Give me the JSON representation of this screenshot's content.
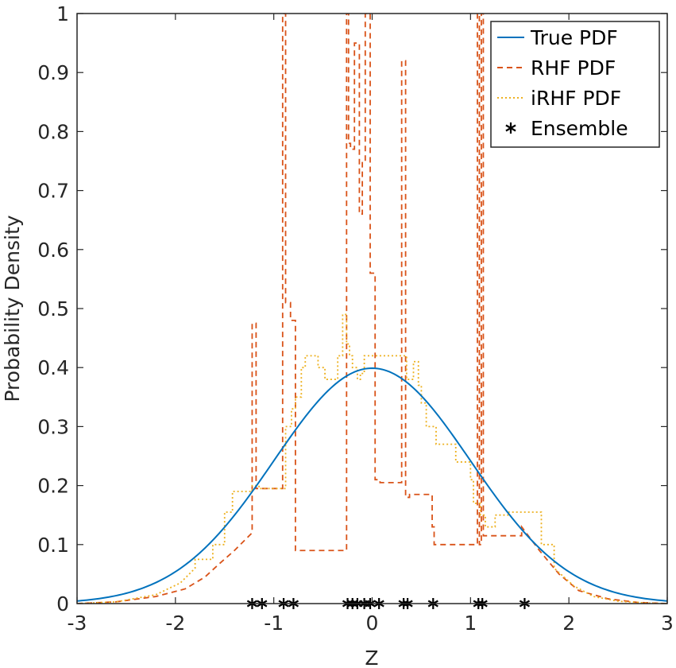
{
  "chart_data": {
    "type": "line",
    "title": "",
    "xlabel": "Z",
    "ylabel": "Probability Density",
    "xlim": [
      -3,
      3
    ],
    "ylim": [
      0,
      1
    ],
    "xticks": [
      "-3",
      "-2",
      "-1",
      "0",
      "1",
      "2",
      "3"
    ],
    "yticks": [
      "0",
      "0.1",
      "0.2",
      "0.3",
      "0.4",
      "0.5",
      "0.6",
      "0.7",
      "0.8",
      "0.9",
      "1"
    ],
    "grid": false,
    "legend_position": "top-right",
    "series": [
      {
        "name": "True PDF",
        "style": "solid",
        "color": "#0072bd",
        "kind": "normal_pdf",
        "mean": 0,
        "std": 1
      },
      {
        "name": "RHF PDF",
        "style": "dashed",
        "color": "#d95319",
        "x": [
          -3.0,
          -2.6,
          -2.2,
          -1.9,
          -1.7,
          -1.55,
          -1.4,
          -1.22,
          -1.22,
          -1.18,
          -1.18,
          -1.12,
          -1.12,
          -0.91,
          -0.91,
          -0.88,
          -0.88,
          -0.83,
          -0.83,
          -0.78,
          -0.78,
          -0.26,
          -0.26,
          -0.24,
          -0.24,
          -0.22,
          -0.22,
          -0.18,
          -0.18,
          -0.13,
          -0.13,
          -0.1,
          -0.1,
          -0.07,
          -0.07,
          -0.02,
          -0.02,
          0.0,
          0.0,
          0.03,
          0.03,
          0.08,
          0.08,
          0.3,
          0.3,
          0.34,
          0.34,
          0.38,
          0.38,
          0.61,
          0.61,
          0.63,
          0.63,
          1.07,
          1.07,
          1.09,
          1.09,
          1.11,
          1.11,
          1.13,
          1.13,
          1.52,
          1.52,
          1.7,
          1.9,
          2.1,
          2.4,
          2.7,
          3.0
        ],
        "y": [
          0.0,
          0.003,
          0.012,
          0.025,
          0.045,
          0.068,
          0.09,
          0.12,
          0.475,
          0.475,
          0.195,
          0.195,
          0.195,
          0.195,
          1.0,
          1.0,
          0.51,
          0.51,
          0.48,
          0.48,
          0.09,
          0.09,
          1.0,
          1.0,
          0.78,
          0.78,
          0.77,
          0.77,
          0.95,
          0.95,
          0.66,
          0.66,
          0.75,
          0.75,
          1.0,
          1.0,
          0.56,
          0.56,
          0.56,
          0.56,
          0.21,
          0.21,
          0.205,
          0.205,
          0.92,
          0.92,
          0.18,
          0.18,
          0.185,
          0.185,
          0.13,
          0.13,
          0.1,
          0.1,
          1.0,
          1.0,
          0.1,
          0.1,
          1.0,
          1.0,
          0.115,
          0.115,
          0.13,
          0.09,
          0.05,
          0.022,
          0.008,
          0.002,
          0.0
        ]
      },
      {
        "name": "iRHF PDF",
        "style": "dotted",
        "color": "#edb120",
        "x": [
          -3.0,
          -2.6,
          -2.2,
          -1.95,
          -1.8,
          -1.8,
          -1.62,
          -1.62,
          -1.5,
          -1.5,
          -1.42,
          -1.42,
          -1.22,
          -1.22,
          -1.15,
          -1.15,
          -1.0,
          -0.88,
          -0.88,
          -0.82,
          -0.82,
          -0.78,
          -0.78,
          -0.72,
          -0.72,
          -0.68,
          -0.68,
          -0.55,
          -0.55,
          -0.48,
          -0.48,
          -0.35,
          -0.35,
          -0.3,
          -0.3,
          -0.26,
          -0.26,
          -0.23,
          -0.23,
          -0.2,
          -0.2,
          -0.15,
          -0.15,
          -0.12,
          -0.12,
          -0.08,
          -0.08,
          0.0,
          0.0,
          0.35,
          0.35,
          0.42,
          0.42,
          0.47,
          0.47,
          0.5,
          0.5,
          0.55,
          0.55,
          0.65,
          0.65,
          0.85,
          0.85,
          1.0,
          1.0,
          1.03,
          1.03,
          1.1,
          1.1,
          1.15,
          1.15,
          1.25,
          1.25,
          1.38,
          1.38,
          1.72,
          1.72,
          1.85,
          1.85,
          2.05,
          2.25,
          2.5,
          2.8,
          3.0
        ],
        "y": [
          0.0,
          0.003,
          0.015,
          0.035,
          0.06,
          0.075,
          0.075,
          0.1,
          0.1,
          0.155,
          0.155,
          0.19,
          0.19,
          0.2,
          0.2,
          0.195,
          0.195,
          0.195,
          0.3,
          0.3,
          0.33,
          0.33,
          0.35,
          0.35,
          0.4,
          0.4,
          0.42,
          0.42,
          0.4,
          0.4,
          0.38,
          0.38,
          0.42,
          0.42,
          0.49,
          0.49,
          0.44,
          0.44,
          0.42,
          0.42,
          0.4,
          0.4,
          0.38,
          0.38,
          0.39,
          0.39,
          0.42,
          0.42,
          0.42,
          0.42,
          0.38,
          0.38,
          0.41,
          0.41,
          0.37,
          0.37,
          0.34,
          0.34,
          0.3,
          0.3,
          0.27,
          0.27,
          0.24,
          0.24,
          0.21,
          0.21,
          0.17,
          0.17,
          0.15,
          0.15,
          0.13,
          0.13,
          0.15,
          0.15,
          0.155,
          0.155,
          0.1,
          0.1,
          0.06,
          0.03,
          0.012,
          0.004,
          0.001,
          0.0
        ]
      },
      {
        "name": "Ensemble",
        "style": "marker",
        "marker": "asterisk",
        "color": "#000000",
        "x": [
          -1.22,
          -1.12,
          -0.9,
          -0.8,
          -0.25,
          -0.2,
          -0.15,
          -0.08,
          -0.02,
          0.07,
          0.32,
          0.36,
          0.62,
          1.08,
          1.12,
          1.55
        ],
        "y": [
          0,
          0,
          0,
          0,
          0,
          0,
          0,
          0,
          0,
          0,
          0,
          0,
          0,
          0,
          0,
          0
        ]
      }
    ]
  }
}
